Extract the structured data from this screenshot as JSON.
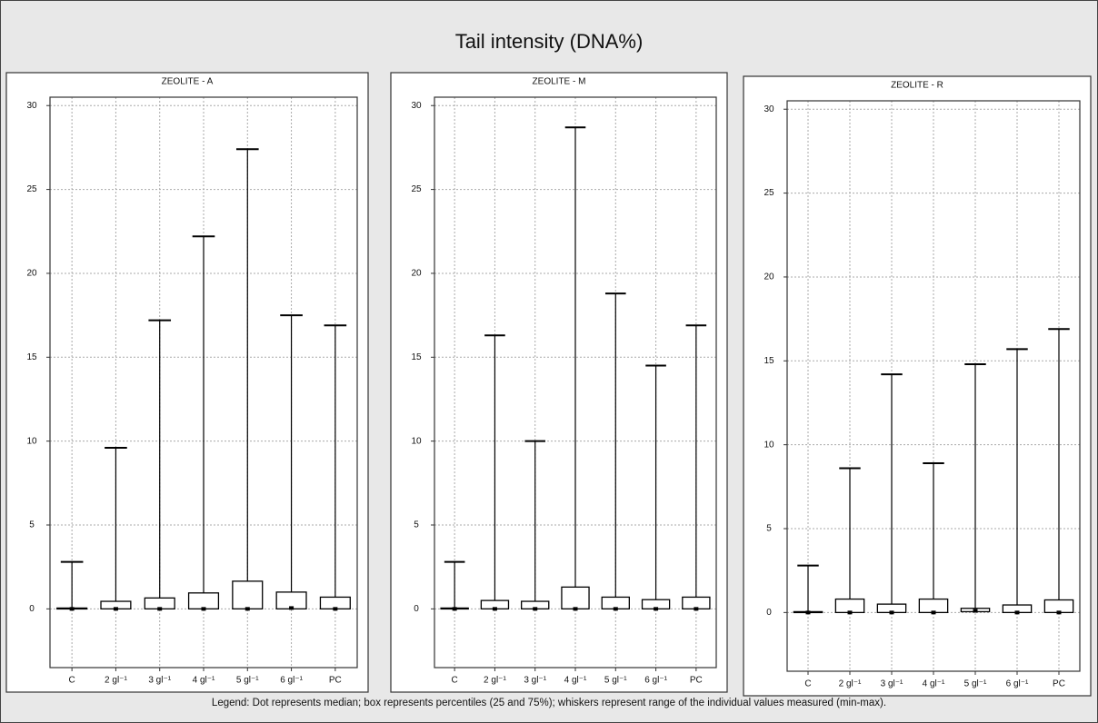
{
  "title": "Tail intensity (DNA%)",
  "legend_note": "Legend: Dot represents median; box represents percentiles (25 and 75%); whiskers represent range of the individual values measured (min-max).",
  "chart_data": [
    {
      "type": "box",
      "title": "ZEOLITE - A",
      "categories": [
        "C",
        "2 gl⁻¹",
        "3 gl⁻¹",
        "4 gl⁻¹",
        "5 gl⁻¹",
        "6 gl⁻¹",
        "PC"
      ],
      "min": [
        0,
        0,
        0,
        0,
        0,
        0,
        0
      ],
      "q1": [
        0,
        0,
        0,
        0,
        0,
        0,
        0
      ],
      "median": [
        0,
        0,
        0,
        0,
        0,
        0.05,
        0
      ],
      "q3": [
        0.05,
        0.45,
        0.65,
        0.95,
        1.65,
        1.0,
        0.7
      ],
      "max": [
        2.8,
        9.6,
        17.2,
        22.2,
        27.4,
        17.5,
        16.9
      ],
      "ylim": [
        -3.5,
        30.5
      ],
      "yticks": [
        0,
        5,
        10,
        15,
        20,
        25,
        30
      ],
      "grid": true
    },
    {
      "type": "box",
      "title": "ZEOLITE - M",
      "categories": [
        "C",
        "2 gl⁻¹",
        "3 gl⁻¹",
        "4 gl⁻¹",
        "5 gl⁻¹",
        "6 gl⁻¹",
        "PC"
      ],
      "min": [
        0,
        0,
        0,
        0,
        0,
        0,
        0
      ],
      "q1": [
        0,
        0,
        0,
        0,
        0,
        0,
        0
      ],
      "median": [
        0,
        0,
        0,
        0,
        0,
        0,
        0
      ],
      "q3": [
        0.05,
        0.5,
        0.45,
        1.3,
        0.7,
        0.55,
        0.7
      ],
      "max": [
        2.8,
        16.3,
        10.0,
        28.7,
        18.8,
        14.5,
        16.9
      ],
      "ylim": [
        -3.5,
        30.5
      ],
      "yticks": [
        0,
        5,
        10,
        15,
        20,
        25,
        30
      ],
      "grid": true
    },
    {
      "type": "box",
      "title": "ZEOLITE - R",
      "categories": [
        "C",
        "2 gl⁻¹",
        "3 gl⁻¹",
        "4 gl⁻¹",
        "5 gl⁻¹",
        "6 gl⁻¹",
        "PC"
      ],
      "min": [
        0,
        0,
        0,
        0,
        0,
        0,
        0
      ],
      "q1": [
        0,
        0,
        0,
        0,
        0.05,
        0,
        0
      ],
      "median": [
        0,
        0,
        0,
        0,
        0.1,
        0,
        0
      ],
      "q3": [
        0.05,
        0.8,
        0.5,
        0.8,
        0.25,
        0.45,
        0.75
      ],
      "max": [
        2.8,
        8.6,
        14.2,
        8.9,
        14.8,
        15.7,
        16.9
      ],
      "ylim": [
        -3.5,
        30.5
      ],
      "yticks": [
        0,
        5,
        10,
        15,
        20,
        25,
        30
      ],
      "grid": true
    }
  ]
}
